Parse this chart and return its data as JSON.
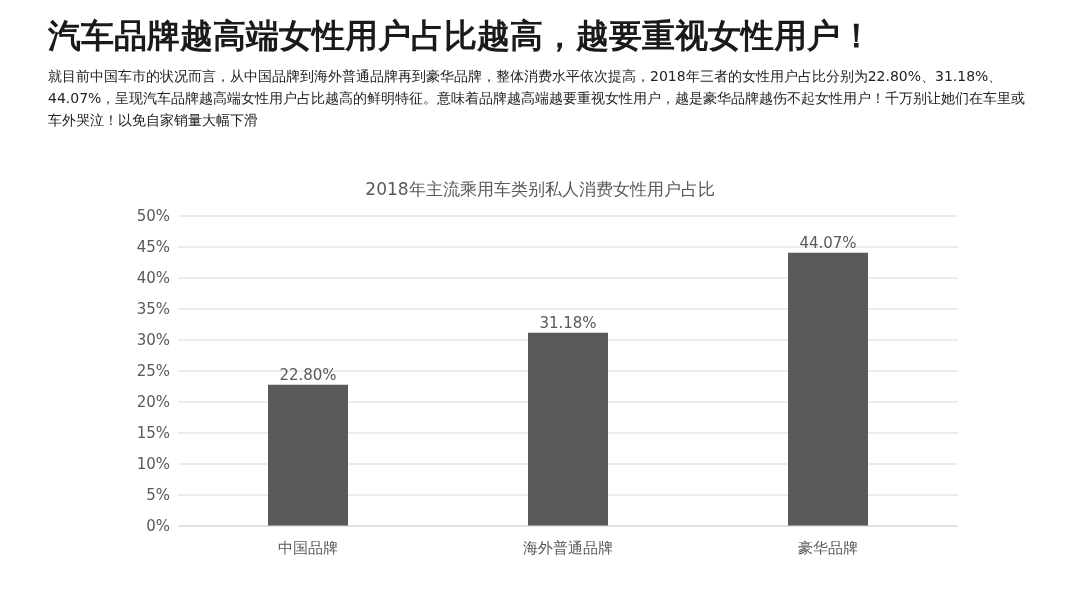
{
  "chart_data": {
    "type": "bar",
    "title": "汽车品牌越高端女性用户占比越高，越要重视女性用户！",
    "subtitle": "就目前中国车市的状况而言，从中国品牌到海外普通品牌再到豪华品牌，整体消费水平依次提高，2018年三者的女性用户占比分别为22.80%、31.18%、44.07%，呈现汽车品牌越高端女性用户占比越高的鲜明特征。意味着品牌越高端越要重视女性用户，越是豪华品牌越伤不起女性用户！千万别让她们在车里或车外哭泣！以免自家销量大幅下滑",
    "annotations": [
      "2018年主流乘用车类别私人消费女性用户占比"
    ],
    "categories": [
      "中国品牌",
      "海外普通品牌",
      "豪华品牌"
    ],
    "values": [
      22.8,
      31.18,
      44.07
    ],
    "value_labels": [
      "22.80%",
      "31.18%",
      "44.07%"
    ],
    "color": "#595959",
    "ylim": [
      0,
      50
    ],
    "yticks": [
      {
        "value": 0,
        "label": "0%"
      },
      {
        "value": 5,
        "label": "5%"
      },
      {
        "value": 10,
        "label": "10%"
      },
      {
        "value": 15,
        "label": "15%"
      },
      {
        "value": 20,
        "label": "20%"
      },
      {
        "value": 25,
        "label": "25%"
      },
      {
        "value": 30,
        "label": "30%"
      },
      {
        "value": 35,
        "label": "35%"
      },
      {
        "value": 40,
        "label": "40%"
      },
      {
        "value": 45,
        "label": "45%"
      },
      {
        "value": 50,
        "label": "50%"
      }
    ],
    "grid": "y"
  }
}
